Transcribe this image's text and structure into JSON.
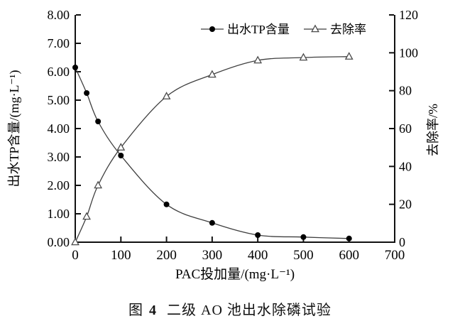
{
  "figure": {
    "caption_prefix": "图",
    "caption_number": "4",
    "caption_text": "二级 AO 池出水除磷试验"
  },
  "chart_data": {
    "type": "line",
    "x": [
      0,
      25,
      50,
      100,
      200,
      300,
      400,
      500,
      600
    ],
    "series": [
      {
        "name": "出水TP含量",
        "axis": "left",
        "marker": "filled-circle",
        "values": [
          6.15,
          5.25,
          4.25,
          3.05,
          1.33,
          0.68,
          0.25,
          0.18,
          0.13
        ]
      },
      {
        "name": "去除率",
        "axis": "right",
        "marker": "open-triangle",
        "values": [
          0,
          13.5,
          30,
          50,
          77,
          88.5,
          96,
          97.5,
          98
        ]
      }
    ],
    "xlabel": "PAC投加量/(mg·L⁻¹)",
    "ylabel_left": "出水TP含量/(mg·L⁻¹)",
    "ylabel_right": "去除率/%",
    "xlim": [
      0,
      700
    ],
    "xticks": [
      0,
      100,
      200,
      300,
      400,
      500,
      600,
      700
    ],
    "ylim_left": [
      0,
      8
    ],
    "yticks_left": [
      "0.00",
      "1.00",
      "2.00",
      "3.00",
      "4.00",
      "5.00",
      "6.00",
      "7.00",
      "8.00"
    ],
    "ylim_right": [
      0,
      120
    ],
    "yticks_right": [
      0,
      20,
      40,
      60,
      80,
      100,
      120
    ],
    "grid": false,
    "smooth": true,
    "legend_position": "top-inside",
    "axis_color": "#111111",
    "line_color": "#3f3f3f",
    "marker_fill": "#000000",
    "triangle_stroke": "#4a4a4a"
  }
}
